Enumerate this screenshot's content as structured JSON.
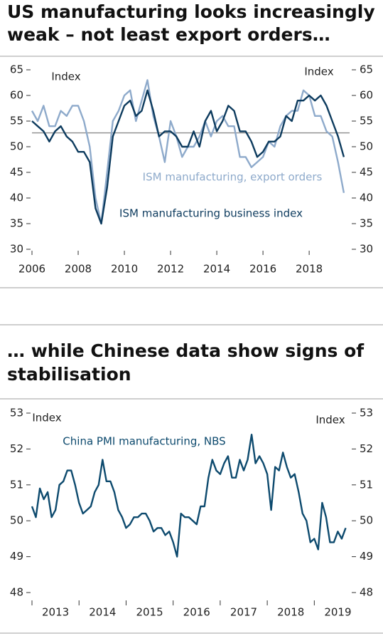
{
  "chart_data": [
    {
      "type": "line",
      "title": [
        "US manufacturing looks increasingly",
        "weak – not least export orders…"
      ],
      "ylabel": "Index",
      "y2label": "Index",
      "x": [
        2006,
        2006.25,
        2006.5,
        2006.75,
        2007,
        2007.25,
        2007.5,
        2007.75,
        2008,
        2008.25,
        2008.5,
        2008.75,
        2009,
        2009.25,
        2009.5,
        2009.75,
        2010,
        2010.25,
        2010.5,
        2010.75,
        2011,
        2011.25,
        2011.5,
        2011.75,
        2012,
        2012.25,
        2012.5,
        2012.75,
        2013,
        2013.25,
        2013.5,
        2013.75,
        2014,
        2014.25,
        2014.5,
        2014.75,
        2015,
        2015.25,
        2015.5,
        2015.75,
        2016,
        2016.25,
        2016.5,
        2016.75,
        2017,
        2017.25,
        2017.5,
        2017.75,
        2018,
        2018.25,
        2018.5,
        2018.75,
        2019,
        2019.25,
        2019.5
      ],
      "series": [
        {
          "name": "ISM manufacturing business index",
          "color": "#0d3b5e",
          "values": [
            55,
            54,
            53,
            51,
            53,
            54,
            52,
            51,
            49,
            49,
            47,
            38,
            35,
            42,
            52,
            55,
            58,
            59,
            56,
            57,
            61,
            57,
            52,
            53,
            53,
            52,
            50,
            50,
            53,
            50,
            55,
            57,
            53,
            55,
            58,
            57,
            53,
            53,
            51,
            48,
            49,
            51,
            51,
            52,
            56,
            55,
            59,
            59,
            60,
            59,
            60,
            58,
            55,
            52,
            48
          ]
        },
        {
          "name": "ISM manufacturing, export orders",
          "color": "#8eaacb",
          "values": [
            57,
            55,
            58,
            54,
            54,
            57,
            56,
            58,
            58,
            55,
            50,
            40,
            35,
            45,
            55,
            57,
            60,
            61,
            55,
            59,
            63,
            56,
            52,
            47,
            55,
            52,
            48,
            50,
            50,
            52,
            55,
            52,
            55,
            56,
            54,
            54,
            48,
            48,
            46,
            47,
            48,
            51,
            50,
            54,
            56,
            57,
            57,
            61,
            60,
            56,
            56,
            53,
            52,
            47,
            41
          ]
        }
      ],
      "hline": 52.7,
      "xlim": [
        2006,
        2019.75
      ],
      "xticks": [
        2006,
        2008,
        2010,
        2012,
        2014,
        2016,
        2018
      ],
      "ylim": [
        30,
        65
      ],
      "yticks": [
        30,
        35,
        40,
        45,
        50,
        55,
        60,
        65
      ],
      "y2lim": [
        30,
        65
      ],
      "y2ticks": [
        30,
        35,
        40,
        45,
        50,
        55,
        60,
        65
      ]
    },
    {
      "type": "line",
      "title": [
        "… while Chinese data show signs of",
        "stabilisation"
      ],
      "ylabel": "Index",
      "y2label": "Index",
      "categories": [
        "2013",
        "2014",
        "2015",
        "2016",
        "2017",
        "2018",
        "2019"
      ],
      "x": [
        2013,
        2013.083,
        2013.167,
        2013.25,
        2013.333,
        2013.417,
        2013.5,
        2013.583,
        2013.667,
        2013.75,
        2013.833,
        2013.917,
        2014,
        2014.083,
        2014.167,
        2014.25,
        2014.333,
        2014.417,
        2014.5,
        2014.583,
        2014.667,
        2014.75,
        2014.833,
        2014.917,
        2015,
        2015.083,
        2015.167,
        2015.25,
        2015.333,
        2015.417,
        2015.5,
        2015.583,
        2015.667,
        2015.75,
        2015.833,
        2015.917,
        2016,
        2016.083,
        2016.167,
        2016.25,
        2016.333,
        2016.417,
        2016.5,
        2016.583,
        2016.667,
        2016.75,
        2016.833,
        2016.917,
        2017,
        2017.083,
        2017.167,
        2017.25,
        2017.333,
        2017.417,
        2017.5,
        2017.583,
        2017.667,
        2017.75,
        2017.833,
        2017.917,
        2018,
        2018.083,
        2018.167,
        2018.25,
        2018.333,
        2018.417,
        2018.5,
        2018.583,
        2018.667,
        2018.75,
        2018.833,
        2018.917,
        2019,
        2019.083,
        2019.167,
        2019.25,
        2019.333,
        2019.417,
        2019.5,
        2019.583,
        2019.667
      ],
      "series": [
        {
          "name": "China PMI manufacturing, NBS",
          "color": "#0d4a6e",
          "values": [
            50.4,
            50.1,
            50.9,
            50.6,
            50.8,
            50.1,
            50.3,
            51.0,
            51.1,
            51.4,
            51.4,
            51.0,
            50.5,
            50.2,
            50.3,
            50.4,
            50.8,
            51.0,
            51.7,
            51.1,
            51.1,
            50.8,
            50.3,
            50.1,
            49.8,
            49.9,
            50.1,
            50.1,
            50.2,
            50.2,
            50.0,
            49.7,
            49.8,
            49.8,
            49.6,
            49.7,
            49.4,
            49.0,
            50.2,
            50.1,
            50.1,
            50.0,
            49.9,
            50.4,
            50.4,
            51.2,
            51.7,
            51.4,
            51.3,
            51.6,
            51.8,
            51.2,
            51.2,
            51.7,
            51.4,
            51.7,
            52.4,
            51.6,
            51.8,
            51.6,
            51.3,
            50.3,
            51.5,
            51.4,
            51.9,
            51.5,
            51.2,
            51.3,
            50.8,
            50.2,
            50.0,
            49.4,
            49.5,
            49.2,
            50.5,
            50.1,
            49.4,
            49.4,
            49.7,
            49.5,
            49.8
          ]
        }
      ],
      "xlim": [
        2013,
        2019.75
      ],
      "ylim": [
        48,
        53
      ],
      "yticks": [
        48,
        49,
        50,
        51,
        52,
        53
      ],
      "y2lim": [
        48,
        53
      ],
      "y2ticks": [
        48,
        49,
        50,
        51,
        52,
        53
      ]
    }
  ]
}
